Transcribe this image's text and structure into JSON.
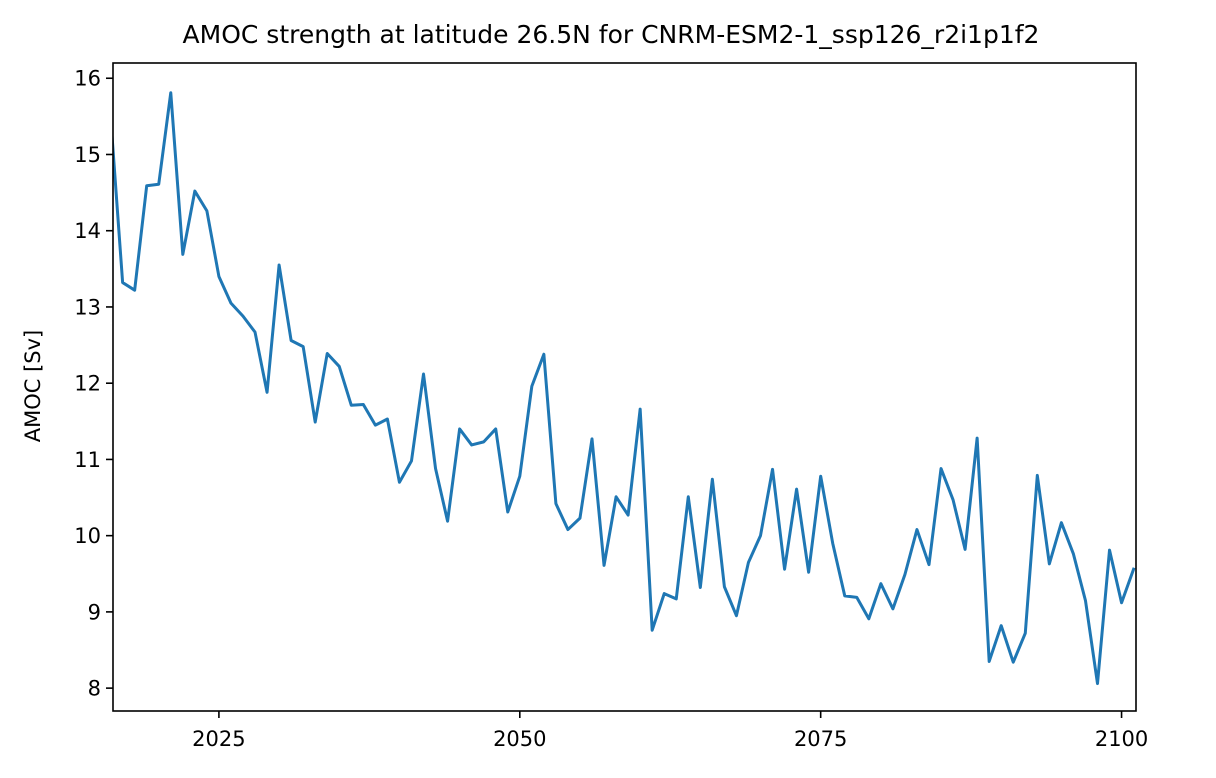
{
  "chart_data": {
    "type": "line",
    "title": "AMOC strength at latitude 26.5N for CNRM-ESM2-1_ssp126_r2i1p1f2",
    "xlabel": "",
    "ylabel": "AMOC [Sv]",
    "xlim": [
      2016.2,
      2101.2
    ],
    "ylim": [
      7.7,
      16.2
    ],
    "xticks": [
      2025,
      2050,
      2075,
      2100
    ],
    "xtick_labels": [
      "2025",
      "2050",
      "2075",
      "2100"
    ],
    "yticks": [
      8,
      9,
      10,
      11,
      12,
      13,
      14,
      15,
      16
    ],
    "ytick_labels": [
      "8",
      "9",
      "10",
      "11",
      "12",
      "13",
      "14",
      "15",
      "16"
    ],
    "grid": false,
    "color": "#1f77b4",
    "series": [
      {
        "x": [
          2016,
          2017,
          2018,
          2019,
          2020,
          2021,
          2022,
          2023,
          2024,
          2025,
          2026,
          2027,
          2028,
          2029,
          2030,
          2031,
          2032,
          2033,
          2034,
          2035,
          2036,
          2037,
          2038,
          2039,
          2040,
          2041,
          2042,
          2043,
          2044,
          2045,
          2046,
          2047,
          2048,
          2049,
          2050,
          2051,
          2052,
          2053,
          2054,
          2055,
          2056,
          2057,
          2058,
          2059,
          2060,
          2061,
          2062,
          2063,
          2064,
          2065,
          2066,
          2067,
          2068,
          2069,
          2070,
          2071,
          2072,
          2073,
          2074,
          2075,
          2076,
          2077,
          2078,
          2079,
          2080,
          2081,
          2082,
          2083,
          2084,
          2085,
          2086,
          2087,
          2088,
          2089,
          2090,
          2091,
          2092,
          2093,
          2094,
          2095,
          2096,
          2097,
          2098,
          2099,
          2100,
          2101
        ],
        "values": [
          15.5,
          13.32,
          13.22,
          14.59,
          14.61,
          15.81,
          13.69,
          14.52,
          14.26,
          13.4,
          13.05,
          12.88,
          12.67,
          11.88,
          13.55,
          12.56,
          12.48,
          11.49,
          12.39,
          12.22,
          11.71,
          11.72,
          11.45,
          11.53,
          10.7,
          10.98,
          12.12,
          10.88,
          10.19,
          11.4,
          11.19,
          11.23,
          11.4,
          10.31,
          10.78,
          11.96,
          12.38,
          10.42,
          10.08,
          10.23,
          11.27,
          9.61,
          10.51,
          10.27,
          11.66,
          8.76,
          9.24,
          9.17,
          10.51,
          9.32,
          10.74,
          9.33,
          8.95,
          9.65,
          10.0,
          10.87,
          9.56,
          10.61,
          9.52,
          10.78,
          9.9,
          9.21,
          9.19,
          8.91,
          9.37,
          9.04,
          9.49,
          10.08,
          9.62,
          10.88,
          10.47,
          9.82,
          11.28,
          8.35,
          8.82,
          8.34,
          8.72,
          10.79,
          9.63,
          10.17,
          9.76,
          9.15,
          8.06,
          9.81,
          9.12,
          9.56
        ]
      }
    ]
  }
}
